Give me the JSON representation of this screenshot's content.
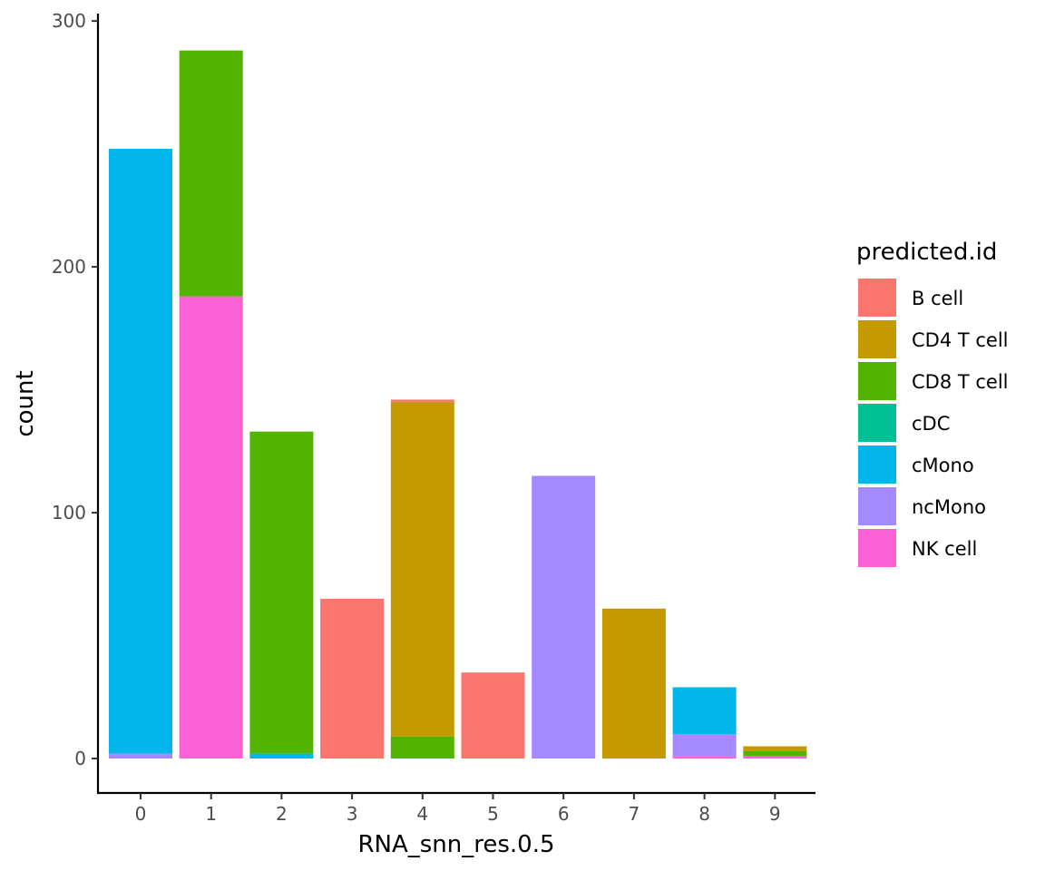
{
  "chart_data": {
    "type": "bar",
    "stacked": true,
    "title": "",
    "xlabel": "RNA_snn_res.0.5",
    "ylabel": "count",
    "ylim": [
      -14,
      303
    ],
    "y_ticks": [
      0,
      100,
      200,
      300
    ],
    "categories": [
      "0",
      "1",
      "2",
      "3",
      "4",
      "5",
      "6",
      "7",
      "8",
      "9"
    ],
    "legend": {
      "title": "predicted.id",
      "position": "right"
    },
    "series": [
      {
        "name": "B cell",
        "color": "#F8766D",
        "values": [
          0,
          0,
          0,
          65,
          1,
          35,
          0,
          0,
          0,
          0
        ]
      },
      {
        "name": "CD4 T cell",
        "color": "#C49A00",
        "values": [
          0,
          0,
          0,
          0,
          136,
          0,
          0,
          61,
          0,
          2
        ]
      },
      {
        "name": "CD8 T cell",
        "color": "#53B400",
        "values": [
          0,
          100,
          131,
          0,
          9,
          0,
          0,
          0,
          0,
          2
        ]
      },
      {
        "name": "cDC",
        "color": "#00C094",
        "values": [
          0,
          0,
          0,
          0,
          0,
          0,
          0,
          0,
          0,
          0
        ]
      },
      {
        "name": "cMono",
        "color": "#00B6EB",
        "values": [
          246,
          0,
          2,
          0,
          0,
          0,
          0,
          0,
          19,
          0
        ]
      },
      {
        "name": "ncMono",
        "color": "#A58AFF",
        "values": [
          2,
          0,
          0,
          0,
          0,
          0,
          115,
          0,
          9,
          0
        ]
      },
      {
        "name": "NK cell",
        "color": "#FB61D7",
        "values": [
          0,
          188,
          0,
          0,
          0,
          0,
          0,
          0,
          1,
          1
        ]
      }
    ]
  }
}
